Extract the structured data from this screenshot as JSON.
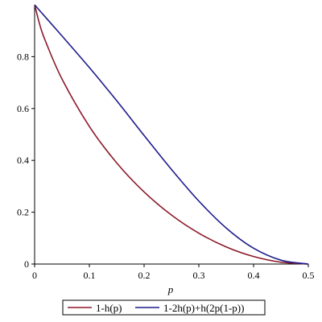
{
  "chart_data": {
    "type": "line",
    "xlabel": "p",
    "ylabel": "",
    "xlim": [
      0,
      0.5
    ],
    "ylim": [
      0,
      1
    ],
    "xticks": [
      "0",
      "0.1",
      "0.2",
      "0.3",
      "0.4",
      "0.5"
    ],
    "yticks": [
      "0",
      "0.2",
      "0.4",
      "0.6",
      "0.8"
    ],
    "grid": false,
    "legend_position": "bottom",
    "series": [
      {
        "name": "1-h(p)",
        "color": "#8b1a2a",
        "x": [
          0,
          0.01,
          0.02,
          0.05,
          0.1,
          0.15,
          0.2,
          0.25,
          0.3,
          0.35,
          0.4,
          0.45,
          0.5
        ],
        "y": [
          1.0,
          0.919,
          0.859,
          0.714,
          0.531,
          0.39,
          0.278,
          0.189,
          0.119,
          0.066,
          0.029,
          0.007,
          0.0
        ]
      },
      {
        "name": "1-2h(p)+h(2p(1-p))",
        "color": "#1c1c8c",
        "x": [
          0,
          0.01,
          0.02,
          0.05,
          0.1,
          0.15,
          0.2,
          0.25,
          0.3,
          0.35,
          0.4,
          0.45,
          0.5
        ],
        "y": [
          1.0,
          0.976,
          0.952,
          0.88,
          0.758,
          0.63,
          0.496,
          0.365,
          0.243,
          0.139,
          0.061,
          0.015,
          0.0
        ]
      }
    ]
  }
}
